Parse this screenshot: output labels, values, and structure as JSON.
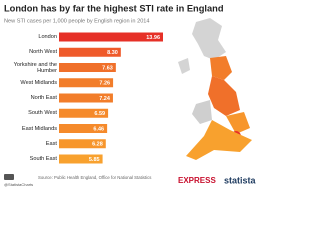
{
  "chart_data": {
    "type": "bar",
    "orientation": "horizontal",
    "title": "London has by far the highest STI rate in England",
    "subtitle": "New STI cases per 1,000 people by English region in 2014",
    "categories": [
      "London",
      "North West",
      "Yorkshire and the Humber",
      "West Midlands",
      "North East",
      "South West",
      "East Midlands",
      "East",
      "South East"
    ],
    "values": [
      13.96,
      8.3,
      7.63,
      7.26,
      7.24,
      6.59,
      6.46,
      6.28,
      5.85
    ],
    "value_labels": [
      "13.96",
      "8.30",
      "7.63",
      "7.26",
      "7.24",
      "6.59",
      "6.46",
      "6.28",
      "5.85"
    ],
    "colors": [
      "#e63027",
      "#ef5a2a",
      "#f0702a",
      "#f27d2a",
      "#f27d2a",
      "#f58a2b",
      "#f58a2b",
      "#f7962c",
      "#f8a12e"
    ],
    "source": "Source: Public Health England, Office for National Statistics",
    "handle": "@StatistaCharts",
    "logos": [
      "EXPRESS",
      "statista"
    ]
  }
}
